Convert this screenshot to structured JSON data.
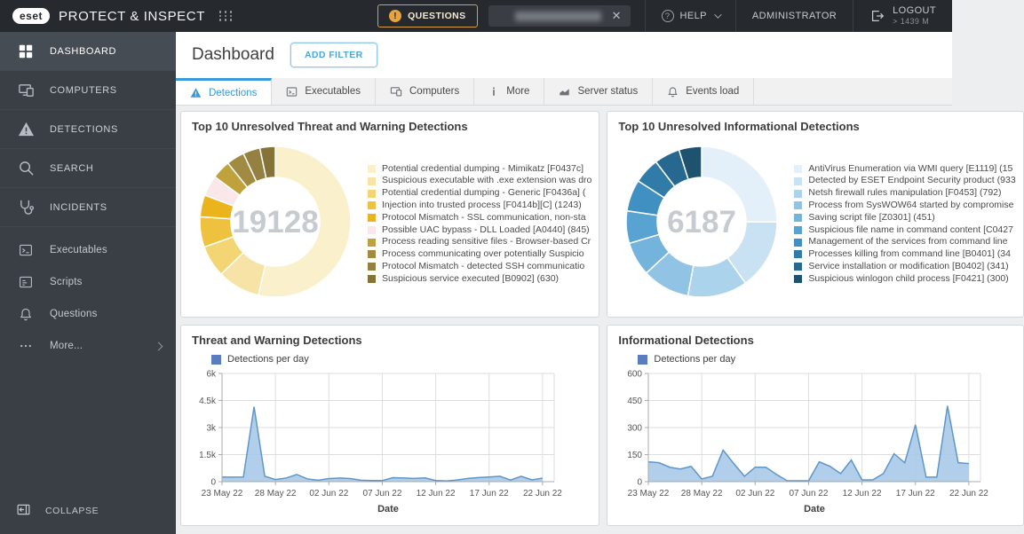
{
  "topbar": {
    "brand": "eset",
    "product": "PROTECT & INSPECT",
    "questions_label": "QUESTIONS",
    "help_label": "HELP",
    "user_label": "ADMINISTRATOR",
    "logout_label": "LOGOUT",
    "logout_sub": "> 1439 M",
    "close_glyph": "✕",
    "help_glyph": "?",
    "alert_glyph": "!",
    "accent_orange": "#E8A33C",
    "accent_blue": "#3A99D8"
  },
  "sidebar": {
    "items": [
      {
        "label": "DASHBOARD",
        "active": true
      },
      {
        "label": "COMPUTERS"
      },
      {
        "label": "DETECTIONS"
      },
      {
        "label": "SEARCH"
      },
      {
        "label": "INCIDENTS"
      },
      {
        "label": "Executables"
      },
      {
        "label": "Scripts"
      },
      {
        "label": "Questions"
      },
      {
        "label": "More..."
      }
    ],
    "collapse_label": "COLLAPSE"
  },
  "header": {
    "title": "Dashboard",
    "add_filter_label": "ADD FILTER"
  },
  "tabs": [
    {
      "label": "Detections",
      "active": true
    },
    {
      "label": "Executables"
    },
    {
      "label": "Computers"
    },
    {
      "label": "More"
    },
    {
      "label": "Server status"
    },
    {
      "label": "Events load"
    }
  ],
  "chart_data": [
    {
      "type": "pie",
      "title": "Top 10 Unresolved Threat and Warning Detections",
      "center_total": "19128",
      "legend_position": "right",
      "labels": [
        "Potential credential dumping - Mimikatz [F0437c]",
        "Suspicious executable with .exe extension was dro",
        "Potential credential dumping - Generic [F0436a] (",
        "Injection into trusted process [F0414b][C] (1243)",
        "Protocol Mismatch - SSL communication, non-sta",
        "Possible UAC bypass - DLL Loaded [A0440] (845)",
        "Process reading sensitive files - Browser-based Cr",
        "Process communicating over potentially Suspicio",
        "Protocol Mismatch - detected SSH communicatio",
        "Suspicious service executed [B0902] (630)"
      ],
      "values": [
        10255,
        1750,
        1300,
        1243,
        900,
        845,
        765,
        740,
        700,
        630
      ],
      "colors": [
        "#FAF0CB",
        "#F8E3A6",
        "#F3D673",
        "#EEC23E",
        "#EBB41C",
        "#F9E7EA",
        "#BFA23B",
        "#A18A41",
        "#948040",
        "#857337"
      ]
    },
    {
      "type": "pie",
      "title": "Top 10 Unresolved Informational Detections",
      "center_total": "6187",
      "legend_position": "right",
      "labels": [
        "AntiVirus Enumeration via WMI query [E1119] (15",
        "Detected by ESET Endpoint Security product (933",
        "Netsh firewall rules manipulation [F0453] (792)",
        "Process from SysWOW64 started by compromise",
        "Saving script file [Z0301] (451)",
        "Suspicious file name in command content [C0427",
        "Management of the services from command line",
        "Processes killing from command line [B0401] (34",
        "Service installation or modification [B0402] (341)",
        "Suspicious winlogon child process [F0421] (300)"
      ],
      "values": [
        1550,
        933,
        792,
        628,
        451,
        430,
        420,
        342,
        341,
        300
      ],
      "colors": [
        "#E4F0F9",
        "#C9E2F3",
        "#ACD3EC",
        "#90C3E4",
        "#73B3DC",
        "#58A3D2",
        "#4090C2",
        "#307BA8",
        "#266890",
        "#1E526F"
      ]
    },
    {
      "type": "area",
      "title": "Threat and Warning Detections",
      "series_name": "Detections per day",
      "xlabel": "Date",
      "ylim": [
        0,
        6000
      ],
      "y_tick_labels": [
        "0",
        "1.5k",
        "3k",
        "4.5k",
        "6k"
      ],
      "x_tick_labels": [
        "23 May 22",
        "28 May 22",
        "02 Jun 22",
        "07 Jun 22",
        "12 Jun 22",
        "17 Jun 22",
        "22 Jun 22"
      ],
      "x_tick_indices": [
        0,
        5,
        10,
        15,
        20,
        25,
        30
      ],
      "values": [
        250,
        250,
        260,
        4150,
        300,
        120,
        200,
        400,
        150,
        80,
        170,
        200,
        170,
        80,
        60,
        60,
        220,
        200,
        180,
        210,
        60,
        40,
        90,
        180,
        230,
        260,
        300,
        90,
        300,
        100,
        200
      ],
      "grid": true,
      "line_color": "#5E96C8",
      "fill_color": "#A9C9E8",
      "legend_swatch_color": "#5B7CC0"
    },
    {
      "type": "area",
      "title": "Informational Detections",
      "series_name": "Detections per day",
      "xlabel": "Date",
      "ylim": [
        0,
        600
      ],
      "y_tick_labels": [
        "0",
        "150",
        "300",
        "450",
        "600"
      ],
      "x_tick_labels": [
        "23 May 22",
        "28 May 22",
        "02 Jun 22",
        "07 Jun 22",
        "12 Jun 22",
        "17 Jun 22",
        "22 Jun 22"
      ],
      "x_tick_indices": [
        0,
        5,
        10,
        15,
        20,
        25,
        30
      ],
      "values": [
        110,
        105,
        80,
        70,
        85,
        15,
        30,
        175,
        100,
        30,
        80,
        80,
        40,
        5,
        5,
        5,
        110,
        85,
        45,
        120,
        10,
        10,
        45,
        155,
        105,
        315,
        25,
        25,
        420,
        105,
        100
      ],
      "grid": true,
      "line_color": "#5E96C8",
      "fill_color": "#A9C9E8",
      "legend_swatch_color": "#5B7CC0"
    }
  ]
}
